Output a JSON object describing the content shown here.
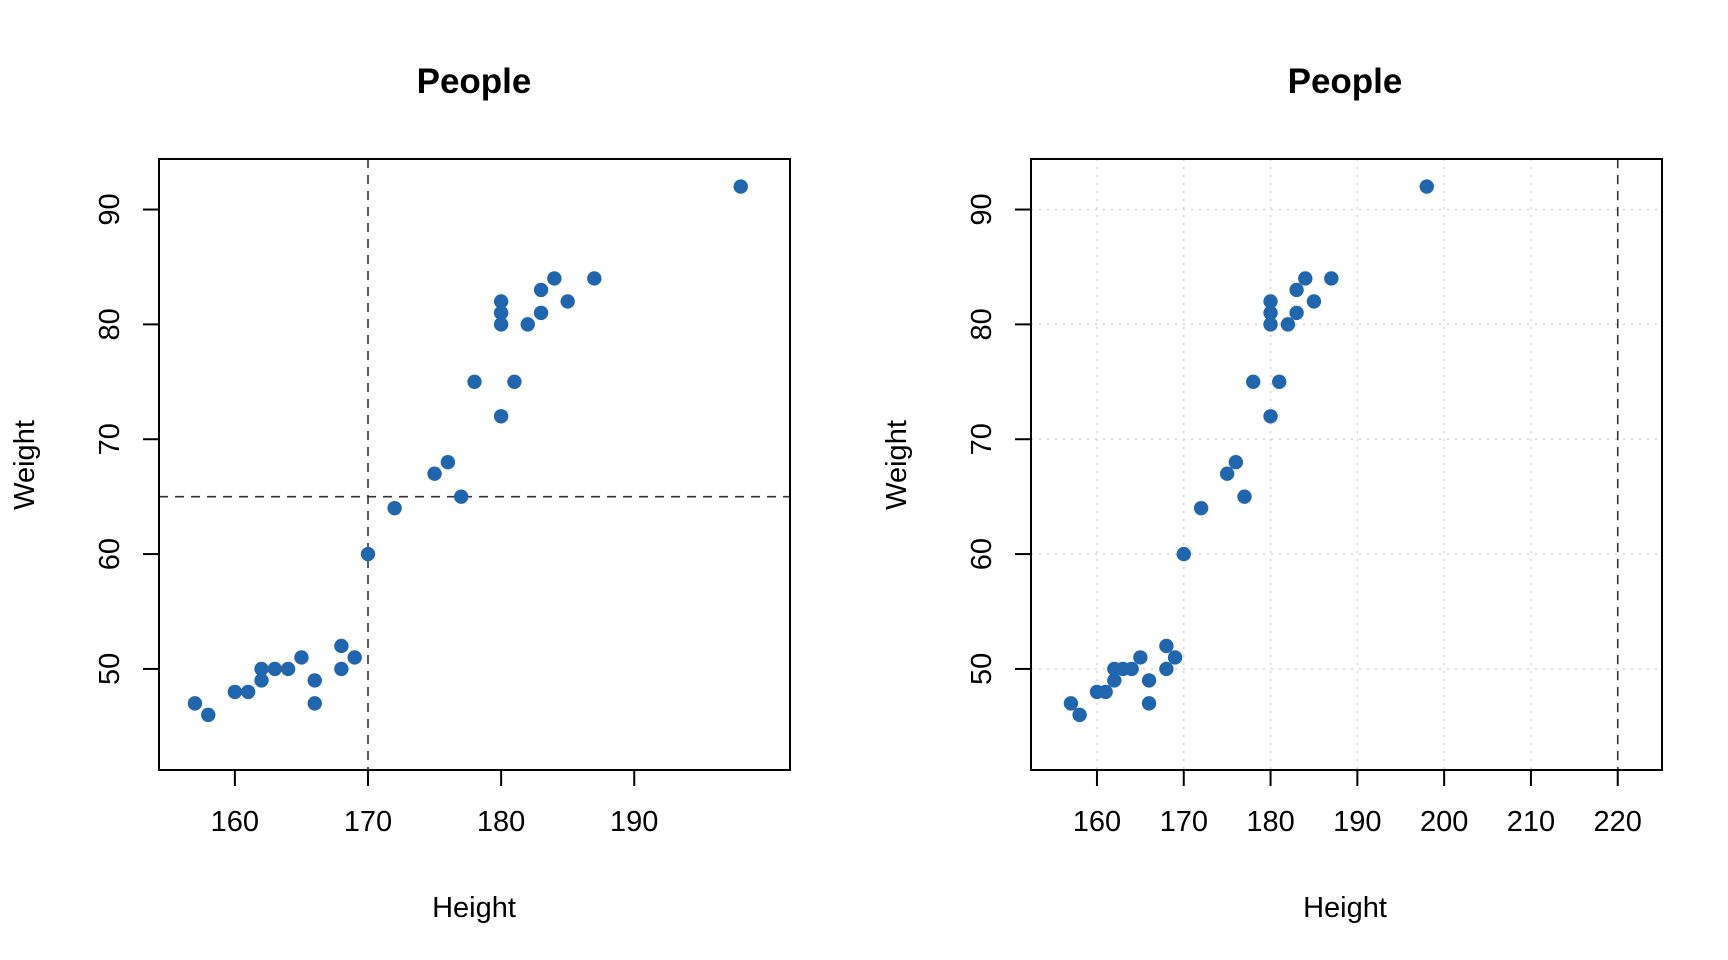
{
  "chart_data": [
    {
      "type": "scatter",
      "title": "People",
      "xlabel": "Height",
      "ylabel": "Weight",
      "xlim": [
        154.3,
        201.7
      ],
      "ylim": [
        41.2,
        94.4
      ],
      "xticks": [
        160,
        170,
        180,
        190
      ],
      "yticks": [
        50,
        60,
        70,
        80,
        90
      ],
      "grid": false,
      "color": "#2166ac",
      "reference_lines": {
        "vertical": [
          170
        ],
        "horizontal": [
          65
        ]
      },
      "series": [
        {
          "name": "People",
          "points": [
            [
              157,
              47
            ],
            [
              158,
              46
            ],
            [
              160,
              48
            ],
            [
              161,
              48
            ],
            [
              162,
              50
            ],
            [
              162,
              49
            ],
            [
              163,
              50
            ],
            [
              164,
              50
            ],
            [
              165,
              51
            ],
            [
              166,
              49
            ],
            [
              166,
              47
            ],
            [
              168,
              52
            ],
            [
              168,
              50
            ],
            [
              169,
              51
            ],
            [
              170,
              60
            ],
            [
              172,
              64
            ],
            [
              175,
              67
            ],
            [
              176,
              68
            ],
            [
              177,
              65
            ],
            [
              178,
              75
            ],
            [
              180,
              72
            ],
            [
              180,
              80
            ],
            [
              180,
              81
            ],
            [
              180,
              82
            ],
            [
              181,
              75
            ],
            [
              182,
              80
            ],
            [
              183,
              81
            ],
            [
              183,
              83
            ],
            [
              184,
              84
            ],
            [
              185,
              82
            ],
            [
              187,
              84
            ],
            [
              198,
              92
            ]
          ]
        }
      ]
    },
    {
      "type": "scatter",
      "title": "People",
      "xlabel": "Height",
      "ylabel": "Weight",
      "xlim": [
        152.4,
        225.1
      ],
      "ylim": [
        41.2,
        94.4
      ],
      "xticks": [
        160,
        170,
        180,
        190,
        200,
        210,
        220
      ],
      "yticks": [
        50,
        60,
        70,
        80,
        90
      ],
      "grid": true,
      "color": "#2166ac",
      "reference_lines": {
        "vertical": [
          220
        ],
        "horizontal": []
      },
      "series": [
        {
          "name": "People",
          "points": [
            [
              157,
              47
            ],
            [
              158,
              46
            ],
            [
              160,
              48
            ],
            [
              161,
              48
            ],
            [
              162,
              50
            ],
            [
              162,
              49
            ],
            [
              163,
              50
            ],
            [
              164,
              50
            ],
            [
              165,
              51
            ],
            [
              166,
              49
            ],
            [
              166,
              47
            ],
            [
              168,
              52
            ],
            [
              168,
              50
            ],
            [
              169,
              51
            ],
            [
              170,
              60
            ],
            [
              172,
              64
            ],
            [
              175,
              67
            ],
            [
              176,
              68
            ],
            [
              177,
              65
            ],
            [
              178,
              75
            ],
            [
              180,
              72
            ],
            [
              180,
              80
            ],
            [
              180,
              81
            ],
            [
              180,
              82
            ],
            [
              181,
              75
            ],
            [
              182,
              80
            ],
            [
              183,
              81
            ],
            [
              183,
              83
            ],
            [
              184,
              84
            ],
            [
              185,
              82
            ],
            [
              187,
              84
            ],
            [
              198,
              92
            ]
          ]
        }
      ]
    }
  ]
}
